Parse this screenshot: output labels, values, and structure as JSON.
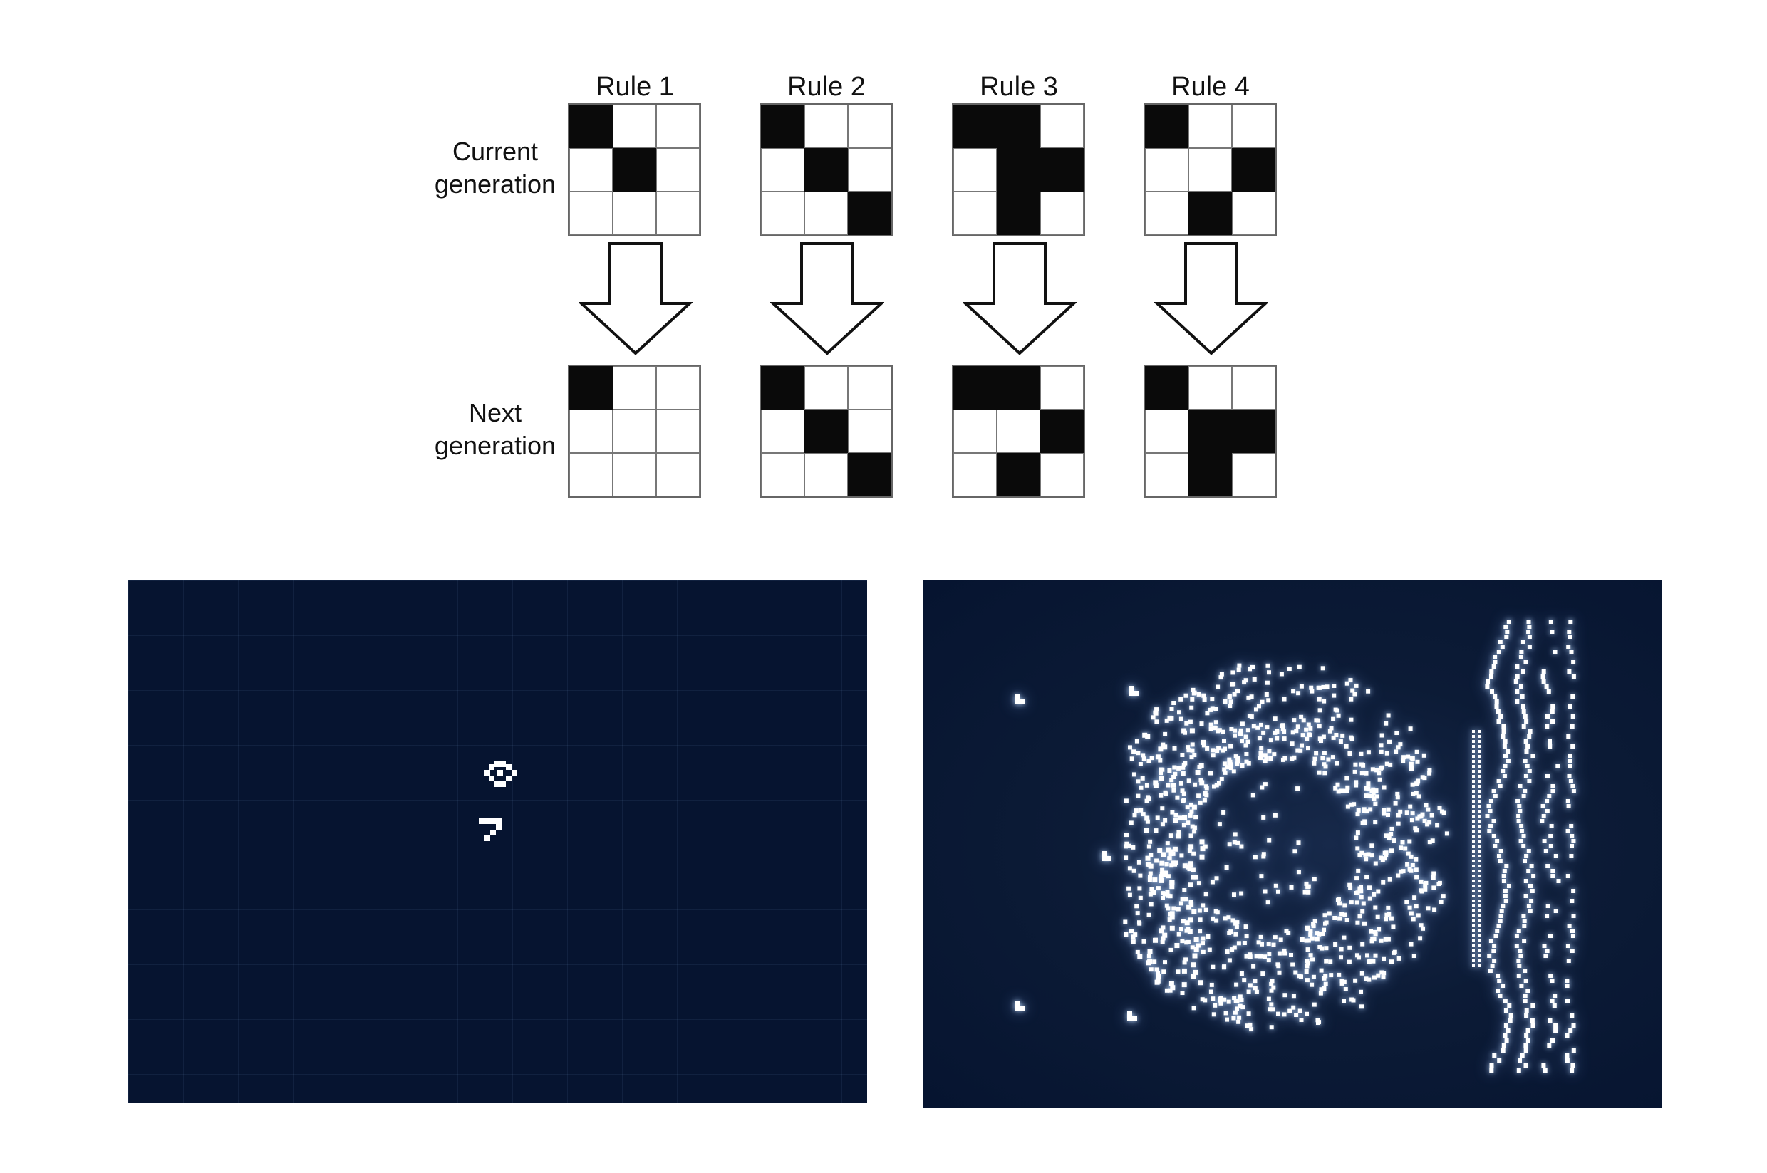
{
  "rule_diagram": {
    "row_labels": {
      "current": [
        "Current",
        "generation"
      ],
      "next": [
        "Next",
        "generation"
      ]
    },
    "rules": [
      {
        "title": "Rule 1",
        "current": [
          [
            1,
            0,
            0
          ],
          [
            0,
            1,
            0
          ],
          [
            0,
            0,
            0
          ]
        ],
        "next": [
          [
            1,
            0,
            0
          ],
          [
            0,
            0,
            0
          ],
          [
            0,
            0,
            0
          ]
        ]
      },
      {
        "title": "Rule 2",
        "current": [
          [
            1,
            0,
            0
          ],
          [
            0,
            1,
            0
          ],
          [
            0,
            0,
            1
          ]
        ],
        "next": [
          [
            1,
            0,
            0
          ],
          [
            0,
            1,
            0
          ],
          [
            0,
            0,
            1
          ]
        ]
      },
      {
        "title": "Rule 3",
        "current": [
          [
            1,
            1,
            0
          ],
          [
            0,
            1,
            1
          ],
          [
            0,
            1,
            0
          ]
        ],
        "next": [
          [
            1,
            1,
            0
          ],
          [
            0,
            0,
            1
          ],
          [
            0,
            1,
            0
          ]
        ]
      },
      {
        "title": "Rule 4",
        "current": [
          [
            1,
            0,
            0
          ],
          [
            0,
            0,
            1
          ],
          [
            0,
            1,
            0
          ]
        ],
        "next": [
          [
            1,
            0,
            0
          ],
          [
            0,
            1,
            1
          ],
          [
            0,
            1,
            0
          ]
        ]
      }
    ]
  },
  "simulation_panels": {
    "background_color": "#061430",
    "cell_color": "#ffffff",
    "left": {
      "description_state": "sparse",
      "grid_visible": true
    },
    "right": {
      "description_state": "dense",
      "grid_visible": false,
      "glow": true
    }
  }
}
